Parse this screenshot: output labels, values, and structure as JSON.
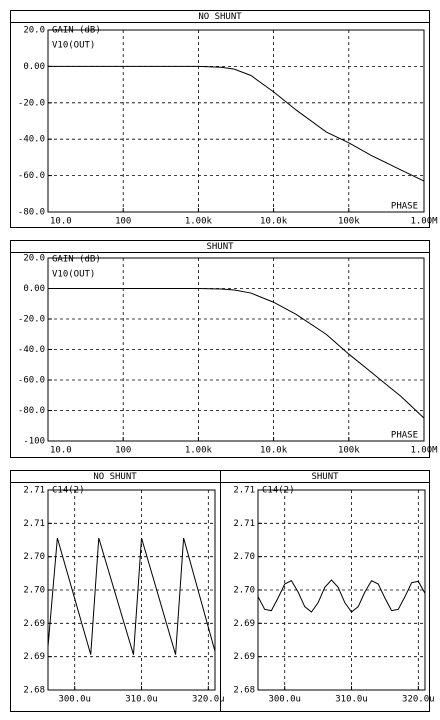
{
  "chart_data": [
    {
      "type": "line",
      "title": "NO SHUNT",
      "annotations": [
        "GAIN (dB)",
        "V10(OUT)",
        "PHASE"
      ],
      "log_x": true,
      "grid": true,
      "x": [
        10,
        100,
        1000,
        2000,
        3000,
        5000,
        10000,
        20000,
        50000,
        100000,
        200000,
        500000,
        1000000
      ],
      "series": [
        {
          "color": "#000000",
          "values": [
            0,
            0,
            0,
            -0.5,
            -1.5,
            -5,
            -14,
            -24,
            -36,
            -42,
            -49,
            -57,
            -63
          ]
        }
      ],
      "xlim": [
        10,
        1000000
      ],
      "xticks": [
        {
          "value": 10,
          "label": "10.0"
        },
        100,
        {
          "value": 1000,
          "label": "1.00k"
        },
        {
          "value": 10000,
          "label": "10.0k"
        },
        {
          "value": 100000,
          "label": "100k"
        },
        {
          "value": 1000000,
          "label": "1.00M"
        }
      ],
      "ylim": [
        -80,
        20
      ],
      "yticks": [
        {
          "value": 20,
          "label": "20.0"
        },
        {
          "value": 0,
          "label": "0.00"
        },
        {
          "value": -20,
          "label": "-20.0"
        },
        {
          "value": -40,
          "label": "-40.0"
        },
        {
          "value": -60,
          "label": "-60.0"
        },
        {
          "value": -80,
          "label": "-80.0"
        }
      ]
    },
    {
      "type": "line",
      "title": "SHUNT",
      "annotations": [
        "GAIN (dB)",
        "V10(OUT)",
        "PHASE"
      ],
      "log_x": true,
      "grid": true,
      "x": [
        10,
        100,
        1000,
        2000,
        3000,
        5000,
        10000,
        20000,
        50000,
        100000,
        200000,
        500000,
        1000000
      ],
      "series": [
        {
          "color": "#000000",
          "values": [
            0,
            0,
            0,
            -0.3,
            -1,
            -3,
            -9,
            -17,
            -30,
            -43,
            -55,
            -71,
            -85
          ]
        }
      ],
      "xlim": [
        10,
        1000000
      ],
      "xticks": [
        {
          "value": 10,
          "label": "10.0"
        },
        100,
        {
          "value": 1000,
          "label": "1.00k"
        },
        {
          "value": 10000,
          "label": "10.0k"
        },
        {
          "value": 100000,
          "label": "100k"
        },
        {
          "value": 1000000,
          "label": "1.00M"
        }
      ],
      "ylim": [
        -100,
        20
      ],
      "yticks": [
        {
          "value": 20,
          "label": "20.0"
        },
        {
          "value": 0,
          "label": "0.00"
        },
        {
          "value": -20,
          "label": "-20.0"
        },
        {
          "value": -40,
          "label": "-40.0"
        },
        {
          "value": -60,
          "label": "-60.0"
        },
        {
          "value": -80,
          "label": "-80.0"
        },
        -100
      ]
    },
    {
      "type": "line",
      "title": "NO SHUNT",
      "annotations": [
        "C14(2)"
      ],
      "log_x": false,
      "grid": true,
      "x": [
        296,
        297.4,
        302.4,
        303.6,
        308.8,
        310,
        315.1,
        316.3,
        321
      ],
      "series": [
        {
          "color": "#000000",
          "values": [
            2.6865,
            2.7028,
            2.6853,
            2.7028,
            2.6853,
            2.7028,
            2.6853,
            2.7028,
            2.6858
          ]
        }
      ],
      "xlim": [
        296,
        321
      ],
      "xticks": [
        {
          "value": 300,
          "label": "300.0u"
        },
        {
          "value": 310,
          "label": "310.0u"
        },
        {
          "value": 320,
          "label": "320.0u"
        }
      ],
      "ylim": [
        2.68,
        2.71
      ],
      "yticks": [
        2.68,
        {
          "value": 2.685,
          "label": "2.69"
        },
        2.69,
        {
          "value": 2.695,
          "label": "2.70"
        },
        {
          "value": 2.7,
          "label": "2.70"
        },
        {
          "value": 2.705,
          "label": "2.71"
        },
        2.71
      ]
    },
    {
      "type": "line",
      "title": "SHUNT",
      "annotations": [
        "C14(2)"
      ],
      "log_x": false,
      "grid": true,
      "x": [
        296,
        297,
        298,
        299,
        300,
        301,
        302,
        303,
        304,
        305,
        306,
        307,
        308,
        309,
        310,
        311,
        312,
        313,
        314,
        315,
        316,
        317,
        318,
        319,
        320,
        321
      ],
      "series": [
        {
          "color": "#000000",
          "values": [
            2.694,
            2.6921,
            2.6919,
            2.6938,
            2.6959,
            2.6964,
            2.6947,
            2.6925,
            2.6917,
            2.6931,
            2.6954,
            2.6965,
            2.6954,
            2.6931,
            2.6917,
            2.6925,
            2.6947,
            2.6964,
            2.6959,
            2.6938,
            2.6919,
            2.6921,
            2.694,
            2.6961,
            2.6963,
            2.6945
          ]
        }
      ],
      "xlim": [
        296,
        321
      ],
      "xticks": [
        {
          "value": 300,
          "label": "300.0u"
        },
        {
          "value": 310,
          "label": "310.0u"
        },
        {
          "value": 320,
          "label": "320.0u"
        }
      ],
      "ylim": [
        2.68,
        2.71
      ],
      "yticks": [
        2.68,
        {
          "value": 2.685,
          "label": "2.69"
        },
        2.69,
        {
          "value": 2.695,
          "label": "2.70"
        },
        {
          "value": 2.7,
          "label": "2.70"
        },
        {
          "value": 2.705,
          "label": "2.71"
        },
        2.71
      ]
    }
  ]
}
